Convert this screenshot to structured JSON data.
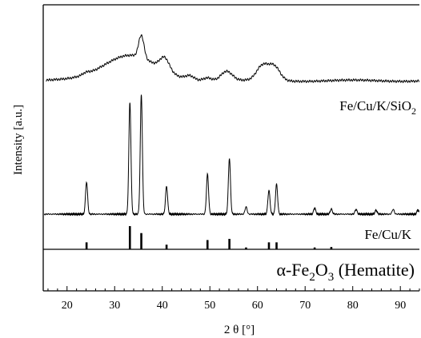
{
  "chart_data": {
    "type": "line",
    "xlabel": "2 θ [°]",
    "ylabel": "Intensity [a.u.]",
    "xlim": [
      15,
      94
    ],
    "xticks": [
      20,
      30,
      40,
      50,
      60,
      70,
      80,
      90
    ],
    "yticks": [],
    "grid": false,
    "series": [
      {
        "name": "Fe/Cu/K/SiO2",
        "label_main": "Fe/Cu/K/SiO",
        "label_sub": "2",
        "baseline": 2.2,
        "noise": 0.03,
        "broad": [
          {
            "pos": 33,
            "amp": 0.4,
            "width": 5.5
          },
          {
            "pos": 35.6,
            "amp": 0.35,
            "width": 0.55
          },
          {
            "pos": 40.5,
            "amp": 0.2,
            "width": 1.0
          },
          {
            "pos": 45.8,
            "amp": 0.06,
            "width": 0.9
          },
          {
            "pos": 49.5,
            "amp": 0.05,
            "width": 0.9
          },
          {
            "pos": 53.5,
            "amp": 0.15,
            "width": 1.2
          },
          {
            "pos": 61,
            "amp": 0.22,
            "width": 1.2
          },
          {
            "pos": 63.5,
            "amp": 0.22,
            "width": 1.2
          },
          {
            "pos": 24,
            "amp": 0.03,
            "width": 0.8
          }
        ]
      },
      {
        "name": "Fe/Cu/K",
        "label_main": "Fe/Cu/K",
        "label_sub": "",
        "baseline": 0,
        "noise": 0.02,
        "peaks": [
          {
            "pos": 24.1,
            "amp": 0.8,
            "width": 0.22
          },
          {
            "pos": 33.2,
            "amp": 2.8,
            "width": 0.22
          },
          {
            "pos": 35.6,
            "amp": 3.0,
            "width": 0.22
          },
          {
            "pos": 40.9,
            "amp": 0.7,
            "width": 0.22
          },
          {
            "pos": 49.5,
            "amp": 1.0,
            "width": 0.22
          },
          {
            "pos": 54.1,
            "amp": 1.4,
            "width": 0.22
          },
          {
            "pos": 57.6,
            "amp": 0.18,
            "width": 0.22
          },
          {
            "pos": 62.4,
            "amp": 0.6,
            "width": 0.22
          },
          {
            "pos": 64.0,
            "amp": 0.75,
            "width": 0.22
          },
          {
            "pos": 72,
            "amp": 0.15,
            "width": 0.22
          },
          {
            "pos": 75.5,
            "amp": 0.13,
            "width": 0.22
          },
          {
            "pos": 80.7,
            "amp": 0.12,
            "width": 0.22
          },
          {
            "pos": 84.9,
            "amp": 0.1,
            "width": 0.22
          },
          {
            "pos": 88.5,
            "amp": 0.12,
            "width": 0.22
          },
          {
            "pos": 93.7,
            "amp": 0.1,
            "width": 0.22
          }
        ]
      }
    ],
    "reference": {
      "label_prefix": "α-Fe",
      "label_sub": "2",
      "label_mid": "O",
      "label_sub2": "3",
      "label_suffix": " (Hematite)",
      "sticks": [
        {
          "pos": 24.1,
          "intensity": 30
        },
        {
          "pos": 33.2,
          "intensity": 100
        },
        {
          "pos": 35.6,
          "intensity": 70
        },
        {
          "pos": 40.9,
          "intensity": 20
        },
        {
          "pos": 49.5,
          "intensity": 40
        },
        {
          "pos": 54.1,
          "intensity": 45
        },
        {
          "pos": 57.6,
          "intensity": 8
        },
        {
          "pos": 62.4,
          "intensity": 30
        },
        {
          "pos": 64.0,
          "intensity": 30
        },
        {
          "pos": 72.0,
          "intensity": 8
        },
        {
          "pos": 75.5,
          "intensity": 10
        }
      ]
    }
  }
}
